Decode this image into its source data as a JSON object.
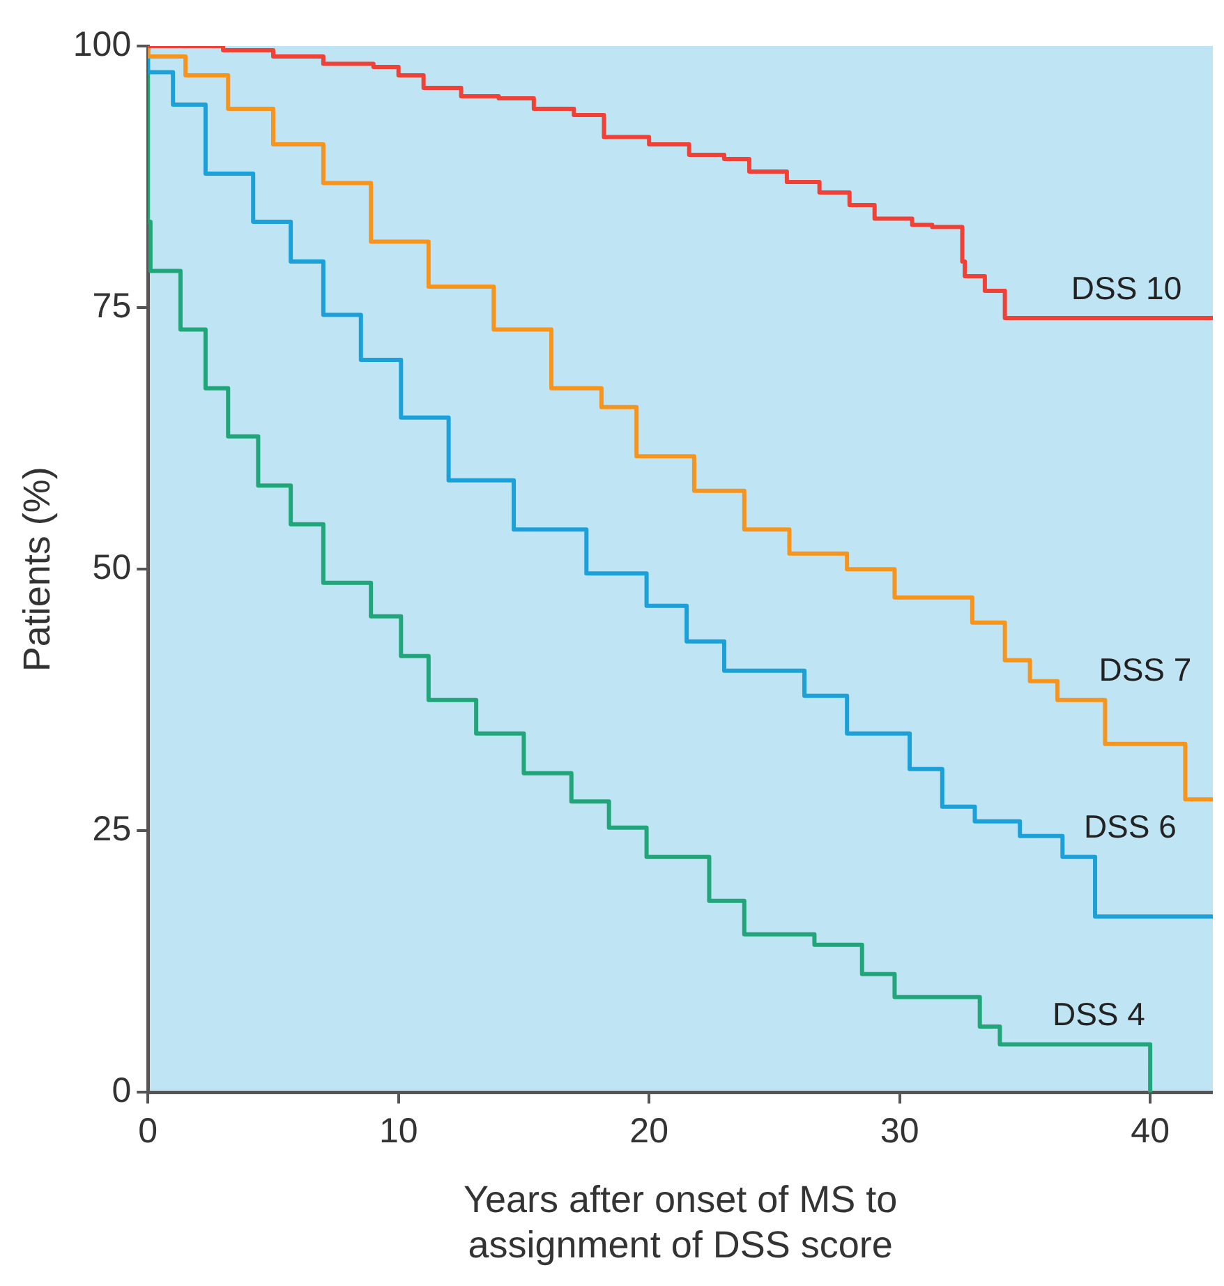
{
  "chart_data": {
    "type": "step",
    "xlabel": "Years after onset of MS to\nassignment of DSS score",
    "ylabel": "Patients (%)",
    "xlim": [
      0,
      42.5
    ],
    "ylim": [
      0,
      100
    ],
    "xticks": [
      0,
      10,
      20,
      30,
      40
    ],
    "yticks": [
      0,
      25,
      50,
      75,
      100
    ],
    "grid": false,
    "legend": false,
    "series": [
      {
        "name": "DSS 10",
        "color": "#ef4136",
        "x": [
          0,
          3,
          5,
          7,
          9,
          10,
          11,
          12.5,
          14,
          15.4,
          17,
          18.2,
          20,
          21.6,
          23,
          24,
          25.5,
          26.8,
          28,
          29,
          30.5,
          31.3,
          32.5,
          32.6,
          33.4,
          34.2,
          35.6,
          42.5
        ],
        "values": [
          100,
          100,
          99.6,
          99,
          98.3,
          98,
          97.2,
          96,
          95.2,
          95,
          94,
          93.4,
          91.3,
          90.6,
          89.6,
          89.2,
          88,
          87,
          86,
          84.8,
          83.5,
          82.9,
          82.7,
          79.4,
          78,
          76.6,
          74,
          74
        ]
      },
      {
        "name": "DSS 7",
        "color": "#f7941d",
        "x": [
          0,
          1.5,
          3.2,
          5,
          7,
          8.9,
          11.2,
          13.8,
          16.1,
          18.1,
          19.5,
          21.8,
          23.8,
          25.6,
          27.9,
          29.8,
          31.3,
          32.9,
          34.2,
          35.2,
          36.3,
          38.2,
          41.4,
          42.4,
          42.5
        ],
        "values": [
          100,
          99,
          97.2,
          94,
          90.6,
          86.9,
          81.3,
          77,
          72.9,
          67.3,
          65.5,
          60.8,
          57.5,
          53.8,
          51.5,
          50,
          47.3,
          47.3,
          44.9,
          41.3,
          39.3,
          37.5,
          33.3,
          28,
          28
        ]
      },
      {
        "name": "DSS 6",
        "color": "#1ba1d8",
        "x": [
          0,
          1,
          2.3,
          4.2,
          5.7,
          7,
          8.5,
          10.1,
          12,
          14.6,
          17.5,
          19.9,
          21.5,
          23,
          26.2,
          27.9,
          30.4,
          31.7,
          33,
          34.8,
          36.5,
          37.8,
          40.6,
          42.5
        ],
        "values": [
          100,
          97.5,
          94.4,
          87.8,
          83.2,
          79.4,
          74.3,
          70,
          64.5,
          58.5,
          53.8,
          49.6,
          46.5,
          43.1,
          40.3,
          37.9,
          34.3,
          30.9,
          27.3,
          25.9,
          24.5,
          22.5,
          16.8,
          16.8
        ]
      },
      {
        "name": "DSS 4",
        "color": "#21a67a",
        "x": [
          0,
          0.1,
          1.3,
          2.3,
          3.2,
          4.4,
          5.7,
          7,
          8.9,
          10.1,
          11.2,
          13.1,
          15,
          16.9,
          18.4,
          19.9,
          22.4,
          23.8,
          26.6,
          28.5,
          29.8,
          30.9,
          33.2,
          34,
          35.9,
          40,
          40.01
        ],
        "values": [
          100,
          83.2,
          78.5,
          72.9,
          67.3,
          62.7,
          58,
          54.3,
          48.7,
          45.5,
          41.7,
          37.5,
          34.3,
          30.5,
          27.8,
          25.3,
          22.5,
          18.3,
          15.1,
          14.1,
          11.3,
          9.1,
          9.1,
          6.3,
          4.6,
          4.6,
          0
        ]
      }
    ]
  }
}
